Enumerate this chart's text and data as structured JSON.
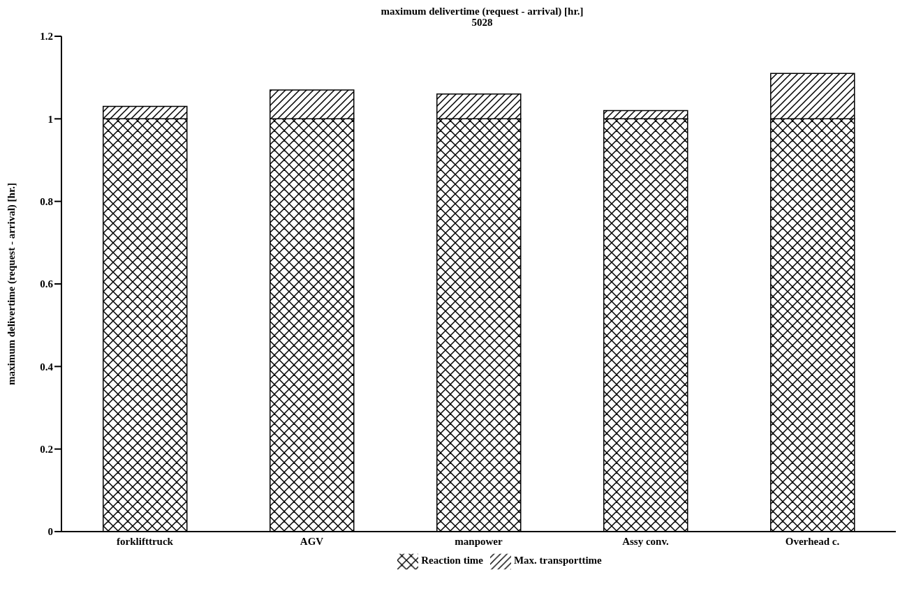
{
  "chart_data": {
    "type": "bar",
    "title": "maximum delivertime (request - arrival) [hr.]",
    "subtitle": "5028",
    "ylabel": "maximum delivertime (request - arrival) [hr.]",
    "categories": [
      "forklifttruck",
      "AGV",
      "manpower",
      "Assy conv.",
      "Overhead c."
    ],
    "stacked": true,
    "legend": "bottom",
    "ylim": [
      0,
      1.2
    ],
    "yticks": [
      {
        "value": 0,
        "label": "0"
      },
      0.2,
      0.4,
      0.6,
      0.8,
      1,
      1.2
    ],
    "series": [
      {
        "name": "Reaction time",
        "color": "#000000",
        "values": [
          1,
          1,
          1,
          1,
          1
        ]
      },
      {
        "name": "Max. transporttime",
        "color": "#000000",
        "values": [
          0.03,
          0.07,
          0.06,
          0.02,
          0.11
        ]
      }
    ]
  }
}
